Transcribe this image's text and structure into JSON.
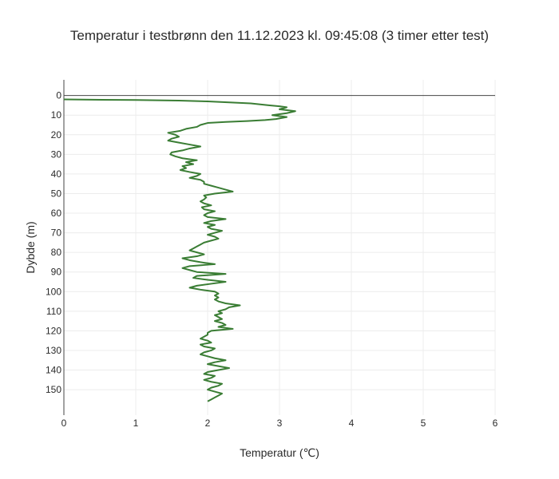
{
  "chart_data": {
    "type": "line",
    "title": "Temperatur i testbrønn den 11.12.2023 kl. 09:45:08 (3 timer etter test)",
    "xlabel": "Temperatur (℃)",
    "ylabel": "Dybde (m)",
    "xlim": [
      0,
      6
    ],
    "ylim": [
      163,
      -8
    ],
    "y_reversed": true,
    "grid": true,
    "x_ticks": [
      0,
      1,
      2,
      3,
      4,
      5,
      6
    ],
    "y_ticks": [
      0,
      10,
      20,
      30,
      40,
      50,
      60,
      70,
      80,
      90,
      100,
      110,
      120,
      130,
      140,
      150
    ],
    "series": [
      {
        "color": "#3a7d34",
        "points": [
          [
            0.0,
            2
          ],
          [
            1.0,
            2.3
          ],
          [
            1.6,
            2.6
          ],
          [
            2.0,
            3
          ],
          [
            2.6,
            4
          ],
          [
            2.85,
            5
          ],
          [
            3.0,
            5.5
          ],
          [
            3.1,
            6
          ],
          [
            3.0,
            7
          ],
          [
            3.22,
            8
          ],
          [
            3.1,
            9
          ],
          [
            2.9,
            10
          ],
          [
            3.1,
            11
          ],
          [
            2.95,
            12
          ],
          [
            2.8,
            12.5
          ],
          [
            2.55,
            13
          ],
          [
            2.25,
            13.5
          ],
          [
            2.0,
            14
          ],
          [
            1.9,
            15
          ],
          [
            1.85,
            16
          ],
          [
            1.7,
            17
          ],
          [
            1.62,
            18
          ],
          [
            1.45,
            19
          ],
          [
            1.55,
            20
          ],
          [
            1.6,
            21
          ],
          [
            1.5,
            22
          ],
          [
            1.45,
            23
          ],
          [
            1.6,
            24
          ],
          [
            1.75,
            25
          ],
          [
            1.9,
            26
          ],
          [
            1.75,
            27
          ],
          [
            1.65,
            28
          ],
          [
            1.5,
            29
          ],
          [
            1.48,
            30
          ],
          [
            1.55,
            31
          ],
          [
            1.65,
            32
          ],
          [
            1.85,
            33
          ],
          [
            1.7,
            34
          ],
          [
            1.8,
            35
          ],
          [
            1.65,
            36
          ],
          [
            1.7,
            37
          ],
          [
            1.62,
            38
          ],
          [
            1.75,
            39
          ],
          [
            1.9,
            40
          ],
          [
            1.85,
            41
          ],
          [
            1.75,
            42
          ],
          [
            1.9,
            43
          ],
          [
            1.95,
            44
          ],
          [
            1.95,
            45
          ],
          [
            2.05,
            46
          ],
          [
            2.15,
            47
          ],
          [
            2.25,
            48
          ],
          [
            2.35,
            49
          ],
          [
            2.1,
            50
          ],
          [
            1.95,
            51
          ],
          [
            1.98,
            52
          ],
          [
            1.95,
            53
          ],
          [
            1.9,
            54
          ],
          [
            1.95,
            55
          ],
          [
            2.05,
            56
          ],
          [
            1.92,
            57
          ],
          [
            1.95,
            58
          ],
          [
            2.1,
            59
          ],
          [
            2.0,
            60
          ],
          [
            1.95,
            61
          ],
          [
            2.0,
            62
          ],
          [
            2.25,
            63
          ],
          [
            2.05,
            64
          ],
          [
            1.95,
            65
          ],
          [
            2.1,
            66
          ],
          [
            2.0,
            67
          ],
          [
            2.05,
            68
          ],
          [
            2.2,
            69
          ],
          [
            2.1,
            70
          ],
          [
            2.0,
            71
          ],
          [
            2.1,
            72
          ],
          [
            2.15,
            73
          ],
          [
            2.05,
            74
          ],
          [
            1.95,
            75
          ],
          [
            1.9,
            76
          ],
          [
            1.85,
            77
          ],
          [
            1.8,
            78
          ],
          [
            1.75,
            79
          ],
          [
            1.85,
            80
          ],
          [
            1.95,
            81
          ],
          [
            1.85,
            82
          ],
          [
            1.65,
            83
          ],
          [
            1.75,
            84
          ],
          [
            1.9,
            85
          ],
          [
            2.1,
            86
          ],
          [
            1.75,
            87
          ],
          [
            1.65,
            88
          ],
          [
            1.75,
            89
          ],
          [
            1.85,
            90
          ],
          [
            2.25,
            91
          ],
          [
            1.85,
            92
          ],
          [
            1.8,
            93
          ],
          [
            2.0,
            94
          ],
          [
            2.25,
            95
          ],
          [
            2.05,
            96
          ],
          [
            1.85,
            97
          ],
          [
            1.75,
            98
          ],
          [
            1.9,
            99
          ],
          [
            2.1,
            100
          ],
          [
            2.15,
            101
          ],
          [
            2.1,
            102
          ],
          [
            2.15,
            103
          ],
          [
            2.1,
            104
          ],
          [
            2.15,
            105
          ],
          [
            2.25,
            106
          ],
          [
            2.45,
            107
          ],
          [
            2.3,
            108
          ],
          [
            2.25,
            109
          ],
          [
            2.15,
            110
          ],
          [
            2.2,
            111
          ],
          [
            2.1,
            112
          ],
          [
            2.15,
            113
          ],
          [
            2.2,
            114
          ],
          [
            2.1,
            115
          ],
          [
            2.2,
            116
          ],
          [
            2.25,
            117
          ],
          [
            2.15,
            118
          ],
          [
            2.35,
            119
          ],
          [
            2.05,
            120
          ],
          [
            2.0,
            121
          ],
          [
            2.0,
            122
          ],
          [
            1.95,
            123
          ],
          [
            1.9,
            124
          ],
          [
            2.0,
            125
          ],
          [
            2.05,
            126
          ],
          [
            1.9,
            127
          ],
          [
            1.95,
            128
          ],
          [
            2.1,
            129
          ],
          [
            2.05,
            130
          ],
          [
            1.95,
            131
          ],
          [
            1.9,
            132
          ],
          [
            2.0,
            133
          ],
          [
            2.1,
            134
          ],
          [
            2.25,
            135
          ],
          [
            2.1,
            136
          ],
          [
            2.0,
            137
          ],
          [
            2.15,
            138
          ],
          [
            2.3,
            139
          ],
          [
            2.15,
            140
          ],
          [
            2.0,
            141
          ],
          [
            1.95,
            142
          ],
          [
            2.1,
            143
          ],
          [
            2.05,
            144
          ],
          [
            1.95,
            145
          ],
          [
            2.05,
            146
          ],
          [
            2.2,
            147
          ],
          [
            2.15,
            148
          ],
          [
            2.05,
            149
          ],
          [
            2.0,
            150
          ],
          [
            2.1,
            151
          ],
          [
            2.2,
            152
          ],
          [
            2.15,
            153
          ],
          [
            2.1,
            154
          ],
          [
            2.05,
            155
          ],
          [
            2.0,
            156
          ]
        ]
      }
    ]
  }
}
